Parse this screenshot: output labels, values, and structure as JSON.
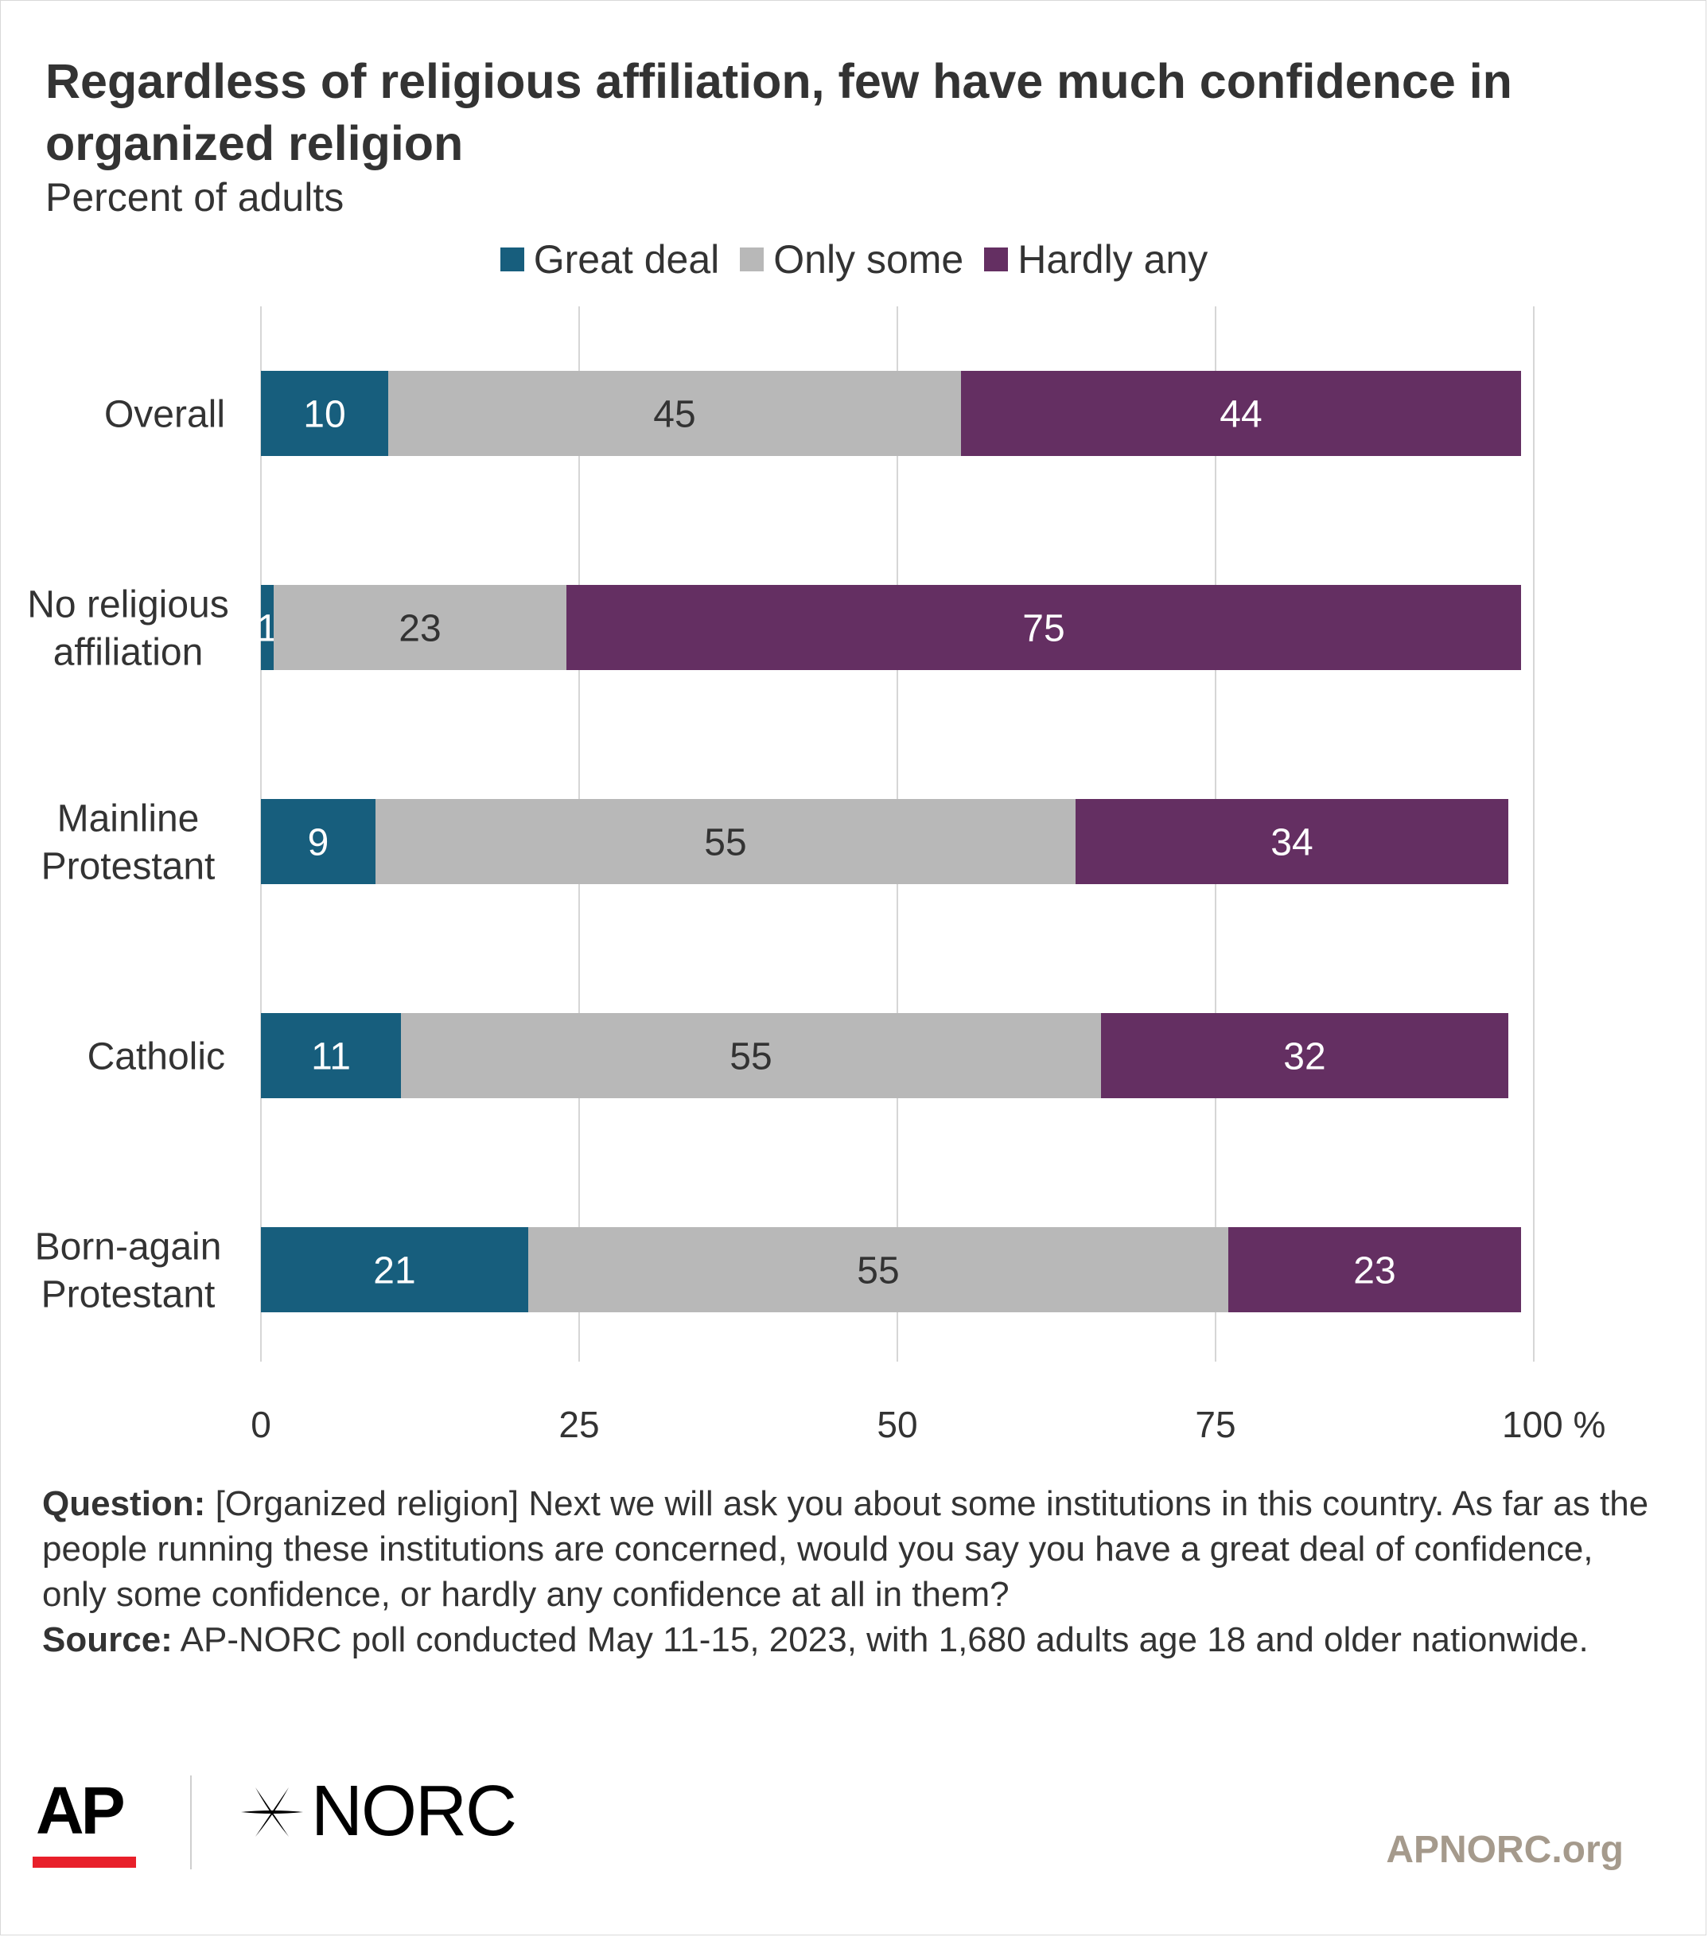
{
  "chart_data": {
    "type": "bar",
    "orientation": "horizontal",
    "stacked": true,
    "title": "Regardless of religious affiliation, few have much confidence in organized religion",
    "subtitle": "Percent of adults",
    "categories": [
      "Overall",
      "No religious affiliation",
      "Mainline Protestant",
      "Catholic",
      "Born-again Protestant"
    ],
    "category_lines": [
      [
        "Overall"
      ],
      [
        "No religious",
        "affiliation"
      ],
      [
        "Mainline",
        "Protestant"
      ],
      [
        "Catholic"
      ],
      [
        "Born-again",
        "Protestant"
      ]
    ],
    "series": [
      {
        "name": "Great deal",
        "color": "#175e7d",
        "values": [
          10,
          1,
          9,
          11,
          21
        ]
      },
      {
        "name": "Only some",
        "color": "#b8b8b8",
        "values": [
          45,
          23,
          55,
          55,
          55
        ]
      },
      {
        "name": "Hardly any",
        "color": "#642f62",
        "values": [
          44,
          75,
          34,
          32,
          23
        ]
      }
    ],
    "xlim": [
      0,
      100
    ],
    "xticks": [
      0,
      25,
      50,
      75,
      100
    ],
    "xtick_labels": [
      "0",
      "25",
      "50",
      "75",
      "100 %"
    ],
    "grid": true,
    "legend_position": "top-center",
    "data_label_colors": [
      "#ffffff",
      "#333333",
      "#ffffff"
    ]
  },
  "footnote": {
    "question_label": "Question:",
    "question_text": "[Organized religion] Next we will ask you about some institutions in this country. As far as the people running these institutions are concerned, would you say you have a great deal of confidence, only some confidence, or hardly any confidence at all in them?",
    "source_label": "Source:",
    "source_text": "AP-NORC poll conducted May 11-15, 2023, with 1,680 adults age 18 and older nationwide."
  },
  "branding": {
    "ap_logo": "AP",
    "norc_logo": "NORC",
    "website": "APNORC.org"
  }
}
